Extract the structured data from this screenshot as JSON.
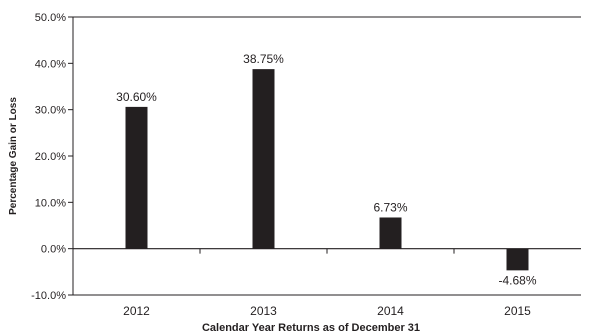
{
  "chart_data": {
    "type": "bar",
    "categories": [
      "2012",
      "2013",
      "2014",
      "2015"
    ],
    "values": [
      30.6,
      38.75,
      6.73,
      -4.68
    ],
    "data_labels": [
      "30.60%",
      "38.75%",
      "6.73%",
      "-4.68%"
    ],
    "title": "",
    "xlabel": "Calendar Year Returns as of December 31",
    "ylabel": "Percentage Gain or Loss",
    "ylim": [
      -10,
      50
    ],
    "yticks": [
      50,
      40,
      30,
      20,
      10,
      0,
      -10
    ],
    "ytick_labels": [
      "50.0%",
      "40.0%",
      "30.0%",
      "20.0%",
      "10.0%",
      "0.0%",
      "-10.0%"
    ],
    "grid": false,
    "bar_color": "#231f20"
  }
}
